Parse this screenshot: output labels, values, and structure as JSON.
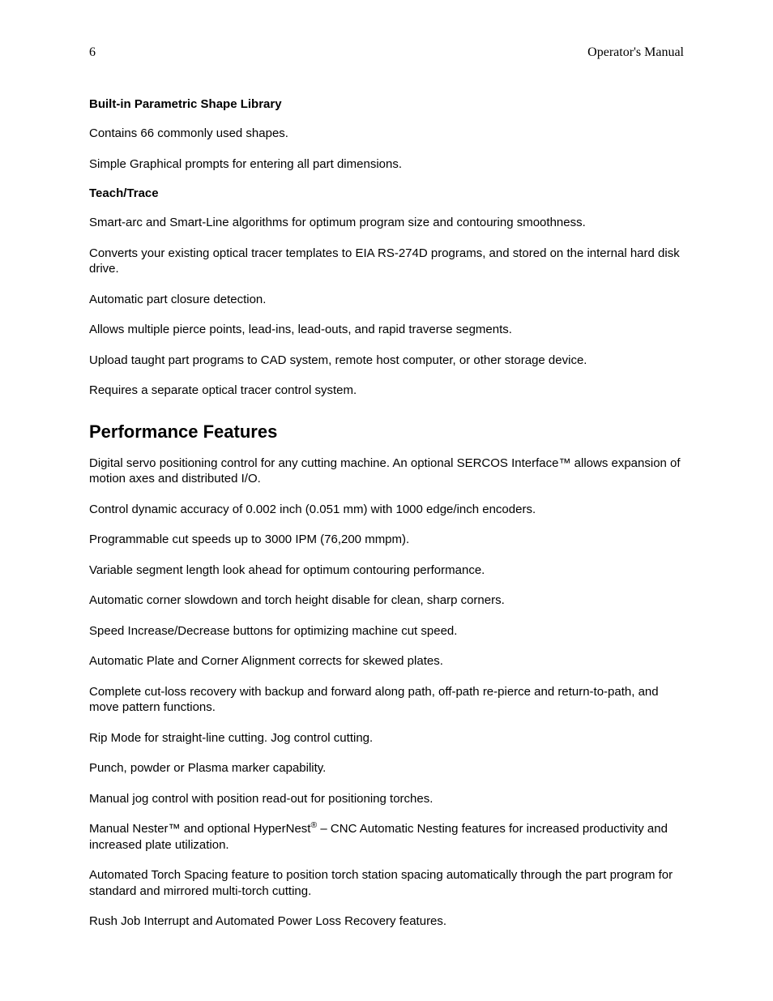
{
  "header": {
    "page_number": "6",
    "doc_title": "Operator's Manual"
  },
  "sections": [
    {
      "subheading": "Built-in Parametric Shape Library",
      "paras": [
        "Contains 66 commonly used shapes.",
        "Simple Graphical prompts for entering all part dimensions."
      ]
    },
    {
      "subheading": "Teach/Trace",
      "paras": [
        "Smart-arc and Smart-Line algorithms for optimum program size and contouring smoothness.",
        "Converts your existing optical tracer templates to EIA RS-274D programs, and stored on the internal hard disk drive.",
        "Automatic part closure detection.",
        "Allows multiple pierce points, lead-ins, lead-outs, and rapid traverse segments.",
        "Upload taught part programs to CAD system, remote host computer, or other storage device.",
        "Requires a separate optical tracer control system."
      ]
    }
  ],
  "perf": {
    "title": "Performance Features",
    "paras": [
      "Digital servo positioning control for any cutting machine.   An optional SERCOS Interface™ allows expansion of motion axes and distributed I/O.",
      "Control dynamic accuracy of 0.002 inch (0.051 mm) with 1000 edge/inch encoders.",
      "Programmable cut speeds up to 3000 IPM (76,200 mmpm).",
      "Variable segment length look ahead for optimum contouring performance.",
      "Automatic corner slowdown and torch height disable for clean, sharp corners.",
      "Speed Increase/Decrease buttons for optimizing machine cut speed.",
      "Automatic Plate and Corner Alignment corrects for skewed plates.",
      "Complete cut-loss recovery with backup and forward along path, off-path re-pierce and return-to-path, and move pattern functions.",
      "Rip Mode for straight-line cutting.  Jog control cutting.",
      "Punch, powder or Plasma marker capability.",
      "Manual jog control with position read-out for positioning torches."
    ],
    "nester_para": {
      "pre": "Manual Nester™ and optional HyperNest",
      "sup": "®",
      "post": " – CNC Automatic Nesting features for increased productivity and increased plate utilization."
    },
    "tail_paras": [
      "Automated Torch Spacing feature to position torch station spacing automatically through the part program for standard and mirrored multi-torch cutting.",
      "Rush Job Interrupt and Automated Power Loss Recovery features."
    ]
  }
}
